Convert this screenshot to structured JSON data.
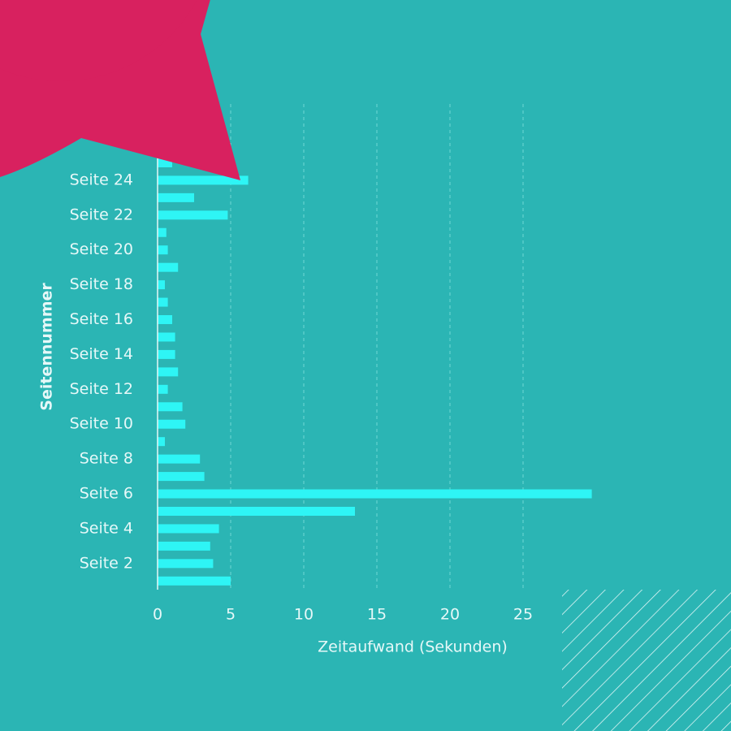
{
  "chart_data": {
    "type": "barh",
    "ylabel": "Seitennummer",
    "xlabel": "Zeitaufwand (Sekunden)",
    "categories": [
      null,
      "Seite 2",
      null,
      "Seite 4",
      null,
      "Seite 6",
      null,
      "Seite 8",
      null,
      "Seite 10",
      null,
      "Seite 12",
      null,
      "Seite 14",
      null,
      "Seite 16",
      null,
      "Seite 18",
      null,
      "Seite 20",
      null,
      "Seite 22",
      null,
      "Seite 24",
      null
    ],
    "values": [
      5.0,
      3.8,
      3.6,
      4.2,
      13.5,
      29.7,
      3.2,
      2.9,
      0.5,
      1.9,
      1.7,
      0.7,
      1.4,
      1.2,
      1.2,
      1.0,
      0.7,
      0.5,
      1.4,
      0.7,
      0.6,
      4.8,
      2.5,
      6.2,
      1.0
    ],
    "color": "#2ef5f5",
    "xlim": [
      0,
      35.5
    ],
    "xticks": [
      0,
      5,
      10,
      15,
      20,
      25
    ],
    "grid": true
  }
}
